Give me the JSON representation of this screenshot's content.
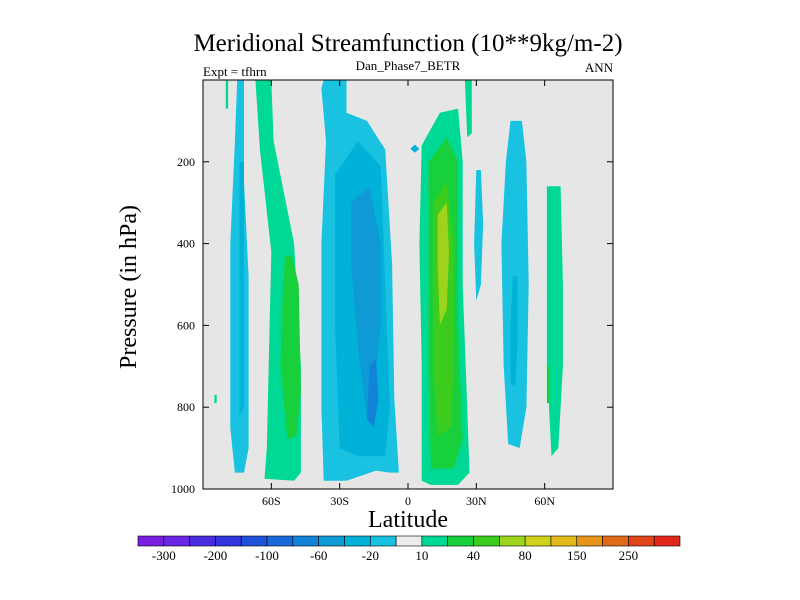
{
  "chart_data": {
    "type": "heatmap",
    "title": "Meridional Streamfunction (10**9kg/m-2)",
    "left_label": "Expt = tfhrn",
    "center_label": "Dan_Phase7_BETR",
    "right_label": "ANN",
    "xlabel": "Latitude",
    "ylabel": "Pressure (in hPa)",
    "xlim": [
      -90,
      90
    ],
    "ylim": [
      1000,
      0
    ],
    "x_ticks": [
      {
        "value": -60,
        "label": "60S"
      },
      {
        "value": -30,
        "label": "30S"
      },
      {
        "value": 0,
        "label": "0"
      },
      {
        "value": 30,
        "label": "30N"
      },
      {
        "value": 60,
        "label": "60N"
      }
    ],
    "y_ticks": [
      {
        "value": 200,
        "label": "200"
      },
      {
        "value": 400,
        "label": "400"
      },
      {
        "value": 600,
        "label": "600"
      },
      {
        "value": 800,
        "label": "800"
      },
      {
        "value": 1000,
        "label": "1000"
      }
    ],
    "background_color": "#e6e6e6",
    "colorbar": {
      "colors": [
        "#7a1fe0",
        "#6a26e2",
        "#4b2cdc",
        "#3135dc",
        "#1f52d8",
        "#1969dd",
        "#1284d8",
        "#0f9ad6",
        "#00b1d8",
        "#18c2e0",
        "#ececec",
        "#00d996",
        "#18d03c",
        "#3bcc1e",
        "#9dd31c",
        "#cfd41a",
        "#e2b91a",
        "#e7951a",
        "#e06a1a",
        "#e0441a",
        "#e3261c"
      ],
      "tick_labels": [
        "-300",
        "-200",
        "-100",
        "-60",
        "-20",
        "10",
        "40",
        "80",
        "150",
        "250"
      ]
    },
    "regions": [
      {
        "name": "sh-polar-weak-cell",
        "color": "#18c2e0",
        "points": [
          [
            -75,
            0
          ],
          [
            -72,
            0
          ],
          [
            -72,
            250
          ],
          [
            -70,
            480
          ],
          [
            -70,
            900
          ],
          [
            -72,
            960
          ],
          [
            -76,
            960
          ],
          [
            -78,
            850
          ],
          [
            -78,
            400
          ],
          [
            -76,
            150
          ]
        ]
      },
      {
        "name": "sh-polar-weak-core",
        "color": "#00b1d8",
        "points": [
          [
            -74,
            200
          ],
          [
            -72,
            200
          ],
          [
            -72,
            800
          ],
          [
            -74,
            820
          ]
        ]
      },
      {
        "name": "sh-ferrel-positive",
        "color": "#00d996",
        "points": [
          [
            -67,
            0
          ],
          [
            -60,
            0
          ],
          [
            -59,
            150
          ],
          [
            -50,
            400
          ],
          [
            -47,
            700
          ],
          [
            -47,
            960
          ],
          [
            -50,
            980
          ],
          [
            -63,
            975
          ],
          [
            -62,
            900
          ],
          [
            -60,
            420
          ],
          [
            -65,
            170
          ]
        ]
      },
      {
        "name": "sh-ferrel-core",
        "color": "#18d03c",
        "points": [
          [
            -54,
            430
          ],
          [
            -51,
            430
          ],
          [
            -48,
            500
          ],
          [
            -47,
            760
          ],
          [
            -49,
            870
          ],
          [
            -53,
            880
          ],
          [
            -56,
            700
          ],
          [
            -55,
            520
          ]
        ]
      },
      {
        "name": "sh-hadley-negative",
        "color": "#18c2e0",
        "points": [
          [
            -37,
            0
          ],
          [
            -27,
            0
          ],
          [
            -27,
            80
          ],
          [
            -18,
            100
          ],
          [
            -10,
            170
          ],
          [
            -7,
            450
          ],
          [
            -6,
            780
          ],
          [
            -4,
            960
          ],
          [
            -8,
            960
          ],
          [
            -14,
            955
          ],
          [
            -27,
            980
          ],
          [
            -37,
            980
          ],
          [
            -38,
            800
          ],
          [
            -38,
            400
          ],
          [
            -36,
            150
          ],
          [
            -38,
            20
          ]
        ]
      },
      {
        "name": "sh-hadley-inner",
        "color": "#00b1d8",
        "points": [
          [
            -32,
            230
          ],
          [
            -22,
            150
          ],
          [
            -12,
            210
          ],
          [
            -10,
            500
          ],
          [
            -8,
            800
          ],
          [
            -10,
            920
          ],
          [
            -22,
            920
          ],
          [
            -30,
            900
          ],
          [
            -32,
            600
          ]
        ]
      },
      {
        "name": "sh-hadley-core",
        "color": "#0f9ad6",
        "points": [
          [
            -25,
            300
          ],
          [
            -17,
            260
          ],
          [
            -12,
            400
          ],
          [
            -12,
            600
          ],
          [
            -15,
            750
          ],
          [
            -18,
            830
          ],
          [
            -22,
            650
          ],
          [
            -25,
            450
          ]
        ]
      },
      {
        "name": "sh-hadley-max",
        "color": "#1284d8",
        "points": [
          [
            -17,
            700
          ],
          [
            -14,
            680
          ],
          [
            -13,
            780
          ],
          [
            -15,
            850
          ],
          [
            -18,
            830
          ]
        ]
      },
      {
        "name": "eq-small-negative",
        "color": "#00b1d8",
        "points": [
          [
            3,
            158
          ],
          [
            5,
            168
          ],
          [
            3,
            178
          ],
          [
            1,
            168
          ]
        ]
      },
      {
        "name": "nh-hadley-positive",
        "color": "#00d996",
        "points": [
          [
            6,
            160
          ],
          [
            14,
            80
          ],
          [
            22,
            70
          ],
          [
            24,
            200
          ],
          [
            24,
            500
          ],
          [
            26,
            800
          ],
          [
            27,
            960
          ],
          [
            22,
            990
          ],
          [
            10,
            990
          ],
          [
            6,
            980
          ],
          [
            6,
            700
          ],
          [
            5,
            400
          ]
        ]
      },
      {
        "name": "nh-hadley-mid",
        "color": "#18d03c",
        "points": [
          [
            9,
            200
          ],
          [
            17,
            140
          ],
          [
            22,
            200
          ],
          [
            22,
            600
          ],
          [
            24,
            880
          ],
          [
            20,
            950
          ],
          [
            10,
            950
          ],
          [
            9,
            700
          ]
        ]
      },
      {
        "name": "nh-hadley-inner",
        "color": "#3bcc1e",
        "points": [
          [
            11,
            300
          ],
          [
            17,
            250
          ],
          [
            20,
            400
          ],
          [
            20,
            700
          ],
          [
            19,
            850
          ],
          [
            13,
            870
          ],
          [
            11,
            700
          ]
        ]
      },
      {
        "name": "nh-hadley-core",
        "color": "#9dd31c",
        "points": [
          [
            13,
            330
          ],
          [
            17,
            300
          ],
          [
            18,
            420
          ],
          [
            17,
            560
          ],
          [
            14,
            600
          ],
          [
            13,
            450
          ]
        ]
      },
      {
        "name": "nh-strato-positive",
        "color": "#00d996",
        "points": [
          [
            25,
            0
          ],
          [
            28,
            0
          ],
          [
            28,
            130
          ],
          [
            26,
            140
          ]
        ]
      },
      {
        "name": "nh-ferrel-negative-thin",
        "color": "#18c2e0",
        "points": [
          [
            30,
            220
          ],
          [
            32,
            220
          ],
          [
            33,
            350
          ],
          [
            32,
            500
          ],
          [
            30,
            540
          ],
          [
            29,
            400
          ]
        ]
      },
      {
        "name": "nh-ferrel-negative",
        "color": "#18c2e0",
        "points": [
          [
            45,
            100
          ],
          [
            50,
            100
          ],
          [
            52,
            200
          ],
          [
            53,
            500
          ],
          [
            52,
            800
          ],
          [
            49,
            900
          ],
          [
            44,
            890
          ],
          [
            42,
            700
          ],
          [
            41,
            400
          ],
          [
            43,
            200
          ]
        ]
      },
      {
        "name": "nh-ferrel-core",
        "color": "#00b1d8",
        "points": [
          [
            46,
            480
          ],
          [
            48,
            480
          ],
          [
            48,
            650
          ],
          [
            47,
            750
          ],
          [
            45,
            740
          ],
          [
            45,
            600
          ]
        ]
      },
      {
        "name": "nh-polar-positive",
        "color": "#00d996",
        "points": [
          [
            61,
            260
          ],
          [
            67,
            260
          ],
          [
            68,
            500
          ],
          [
            68,
            700
          ],
          [
            66,
            900
          ],
          [
            63,
            920
          ],
          [
            61,
            700
          ],
          [
            61,
            400
          ]
        ]
      },
      {
        "name": "nh-polar-core",
        "color": "#18d03c",
        "points": [
          [
            61,
            700
          ],
          [
            62,
            700
          ],
          [
            62,
            790
          ],
          [
            61,
            790
          ]
        ]
      },
      {
        "name": "sh-edge-sliver",
        "color": "#00d996",
        "points": [
          [
            -80,
            0
          ],
          [
            -79,
            0
          ],
          [
            -79,
            70
          ],
          [
            -80,
            70
          ]
        ]
      },
      {
        "name": "sh-edge-dot",
        "color": "#00d996",
        "points": [
          [
            -85,
            770
          ],
          [
            -84,
            770
          ],
          [
            -84,
            790
          ],
          [
            -85,
            790
          ]
        ]
      }
    ]
  }
}
